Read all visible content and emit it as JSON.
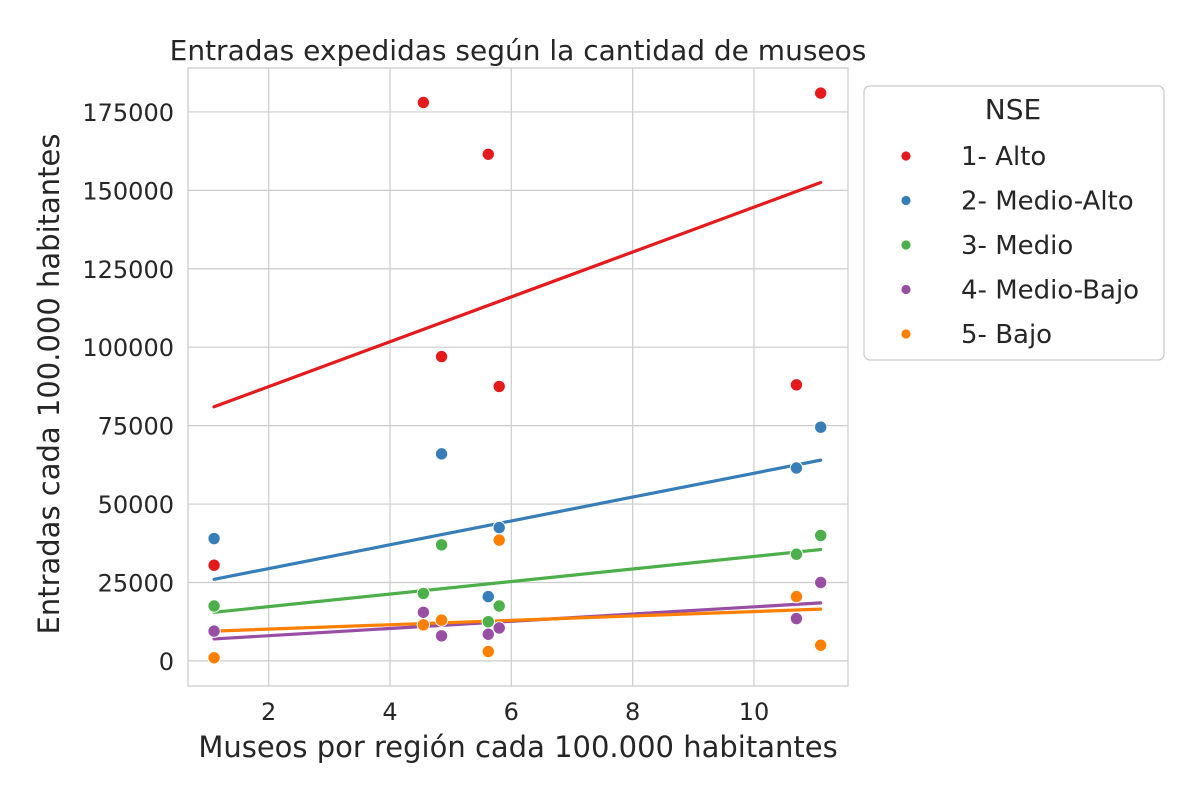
{
  "chart_data": {
    "type": "scatter",
    "title": "Entradas expedidas según la cantidad de museos",
    "xlabel": "Museos por región cada 100.000 habitantes",
    "ylabel": "Entradas cada 100.000 habitantes",
    "xlim": [
      0.67,
      11.55
    ],
    "ylim": [
      -8000,
      189000
    ],
    "xticks": [
      2,
      4,
      6,
      8,
      10
    ],
    "yticks": [
      0,
      25000,
      50000,
      75000,
      100000,
      125000,
      150000,
      175000
    ],
    "grid": true,
    "trend_lines": true,
    "legend": {
      "title": "NSE",
      "placement": "outside-right"
    },
    "series": [
      {
        "name": "1- Alto",
        "color": "#e41a1c",
        "points": [
          [
            1.1,
            30500
          ],
          [
            4.55,
            178000
          ],
          [
            4.85,
            97000
          ],
          [
            5.62,
            161500
          ],
          [
            5.8,
            87500
          ],
          [
            10.7,
            88000
          ],
          [
            11.1,
            181000
          ]
        ],
        "fit": [
          [
            1.1,
            81000
          ],
          [
            11.1,
            152500
          ]
        ]
      },
      {
        "name": "2- Medio-Alto",
        "color": "#377eb8",
        "points": [
          [
            1.1,
            39000
          ],
          [
            4.85,
            66000
          ],
          [
            5.62,
            20500
          ],
          [
            5.8,
            42500
          ],
          [
            10.7,
            61500
          ],
          [
            11.1,
            74500
          ]
        ],
        "fit": [
          [
            1.1,
            26000
          ],
          [
            11.1,
            64000
          ]
        ]
      },
      {
        "name": "3- Medio",
        "color": "#4daf4a",
        "points": [
          [
            1.1,
            17500
          ],
          [
            4.55,
            21500
          ],
          [
            4.85,
            37000
          ],
          [
            5.62,
            12500
          ],
          [
            5.8,
            17500
          ],
          [
            10.7,
            34000
          ],
          [
            11.1,
            40000
          ]
        ],
        "fit": [
          [
            1.1,
            15500
          ],
          [
            11.1,
            35500
          ]
        ]
      },
      {
        "name": "4- Medio-Bajo",
        "color": "#984ea3",
        "points": [
          [
            1.1,
            9500
          ],
          [
            4.55,
            15500
          ],
          [
            4.85,
            8000
          ],
          [
            5.62,
            8500
          ],
          [
            5.8,
            10500
          ],
          [
            10.7,
            13500
          ],
          [
            11.1,
            25000
          ]
        ],
        "fit": [
          [
            1.1,
            7000
          ],
          [
            11.1,
            18500
          ]
        ]
      },
      {
        "name": "5- Bajo",
        "color": "#ff7f00",
        "points": [
          [
            1.1,
            1000
          ],
          [
            4.55,
            11500
          ],
          [
            4.85,
            13000
          ],
          [
            5.62,
            3000
          ],
          [
            5.8,
            38500
          ],
          [
            10.7,
            20500
          ],
          [
            11.1,
            5000
          ]
        ],
        "fit": [
          [
            1.1,
            9500
          ],
          [
            11.1,
            16500
          ]
        ]
      }
    ]
  }
}
